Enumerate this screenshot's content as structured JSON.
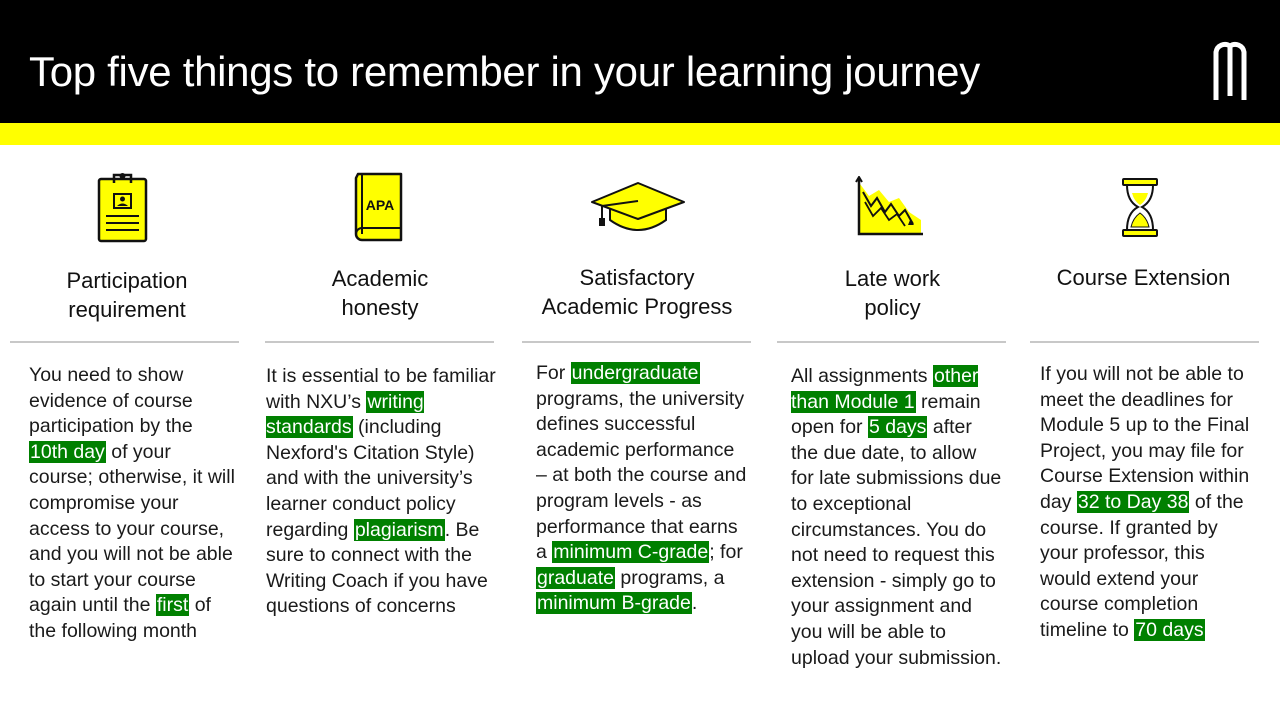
{
  "header": {
    "title": "Top five things to remember in your learning journey",
    "logo_name": "nexford-logo"
  },
  "colors": {
    "header_bg": "#000000",
    "accent_yellow": "#ffff00",
    "highlight_green": "#008000",
    "icon_yellow": "#ffff00"
  },
  "columns": [
    {
      "icon": "clipboard-icon",
      "heading_lines": [
        "Participation",
        "requirement"
      ],
      "body": [
        {
          "t": "You need to show evidence of course participation by the "
        },
        {
          "t": "10th day",
          "hl": true
        },
        {
          "t": " of your course; otherwise, it will compromise your access to your course, and you will not be able to start your course again until the "
        },
        {
          "t": "first",
          "hl": true
        },
        {
          "t": " of the following month"
        }
      ]
    },
    {
      "icon": "apa-book-icon",
      "icon_label": "APA",
      "heading_lines": [
        "Academic",
        "honesty"
      ],
      "body": [
        {
          "t": "It is essential to be familiar with NXU’s "
        },
        {
          "t": "writing standards",
          "hl": true
        },
        {
          "t": " (including Nexford's Citation Style) and with the university’s learner conduct policy regarding "
        },
        {
          "t": "plagiarism",
          "hl": true
        },
        {
          "t": ". Be sure to connect with the Writing Coach if you have questions of concerns"
        }
      ]
    },
    {
      "icon": "graduation-cap-icon",
      "heading_lines": [
        "Satisfactory",
        "Academic Progress"
      ],
      "body": [
        {
          "t": "For "
        },
        {
          "t": "undergraduate",
          "hl": true
        },
        {
          "t": " programs, the university defines successful academic performance – at both the course and program levels -  as performance that earns a "
        },
        {
          "t": "minimum C-grade",
          "hl": true
        },
        {
          "t": "; for "
        },
        {
          "t": "graduate",
          "hl": true
        },
        {
          "t": " programs, a "
        },
        {
          "t": "minimum B-grade",
          "hl": true
        },
        {
          "t": "."
        }
      ]
    },
    {
      "icon": "declining-chart-icon",
      "heading_lines": [
        "Late work",
        "policy"
      ],
      "body": [
        {
          "t": "All assignments "
        },
        {
          "t": "other than Module 1",
          "hl": true
        },
        {
          "t": " remain open for "
        },
        {
          "t": "5 days",
          "hl": true
        },
        {
          "t": " after the due date, to allow for late submissions due to exceptional circumstances. You do not need to request this extension - simply go to your assignment and you will be able to upload your submission."
        }
      ]
    },
    {
      "icon": "hourglass-icon",
      "heading_lines": [
        "Course Extension"
      ],
      "body": [
        {
          "t": "If you will not be able to meet the deadlines for Module 5 up to the Final Project, you may file for Course Extension within day "
        },
        {
          "t": "32 to Day 38",
          "hl": true
        },
        {
          "t": " of the course. If granted by your professor, this would extend your course completion timeline to "
        },
        {
          "t": "70 days",
          "hl": true
        }
      ]
    }
  ]
}
